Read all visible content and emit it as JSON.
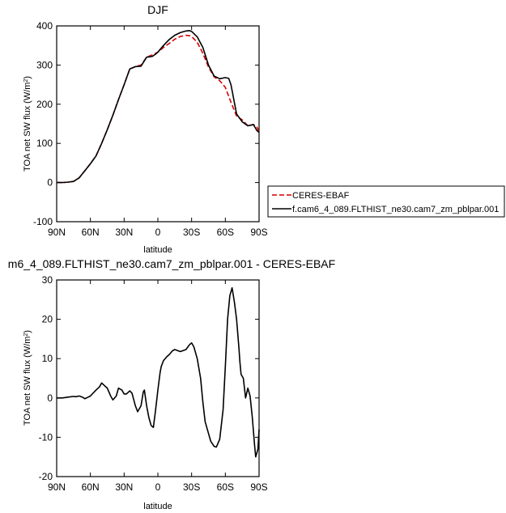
{
  "chart_data": [
    {
      "type": "line",
      "title": "DJF",
      "xlabel": "latitude",
      "ylabel": "TOA net SW flux (W/m",
      "ylabel_sup": "2",
      "ylabel_end": ")",
      "xlim": [
        90,
        -90
      ],
      "ylim": [
        -100,
        400
      ],
      "xticks": [
        90,
        60,
        30,
        0,
        -30,
        -60,
        -90
      ],
      "xtick_labels": [
        "90N",
        "60N",
        "30N",
        "0",
        "30S",
        "60S",
        "90S"
      ],
      "yticks": [
        -100,
        0,
        100,
        200,
        300,
        400
      ],
      "ytick_labels": [
        "-100",
        "0",
        "100",
        "200",
        "300",
        "400"
      ],
      "legend_position": "right-outside",
      "series": [
        {
          "name": "CERES-EBAF",
          "color": "#d40000",
          "dash": "6,3",
          "x": [
            90,
            85,
            80,
            75,
            70,
            65,
            60,
            55,
            50,
            45,
            40,
            35,
            30,
            25,
            20,
            15,
            10,
            5,
            2,
            0,
            -5,
            -10,
            -15,
            -20,
            -25,
            -28,
            -30,
            -35,
            -40,
            -45,
            -50,
            -55,
            -60,
            -65,
            -70,
            -75,
            -80,
            -85,
            -88,
            -90
          ],
          "y": [
            0,
            0,
            1,
            3,
            12,
            30,
            48,
            68,
            100,
            135,
            172,
            212,
            250,
            290,
            296,
            300,
            320,
            326,
            330,
            333,
            345,
            355,
            366,
            373,
            376,
            375,
            373,
            358,
            330,
            295,
            270,
            260,
            243,
            205,
            170,
            160,
            145,
            148,
            142,
            130
          ]
        },
        {
          "name": "f.cam6_4_089.FLTHIST_ne30.cam7_zm_pblpar.001",
          "color": "#000000",
          "dash": "",
          "x": [
            90,
            85,
            80,
            75,
            70,
            65,
            60,
            55,
            50,
            45,
            40,
            35,
            30,
            25,
            20,
            15,
            10,
            5,
            2,
            0,
            -5,
            -10,
            -15,
            -20,
            -25,
            -28,
            -30,
            -35,
            -40,
            -45,
            -50,
            -55,
            -60,
            -63,
            -65,
            -70,
            -75,
            -80,
            -85,
            -88,
            -90
          ],
          "y": [
            0,
            0,
            1,
            3,
            12,
            30,
            48,
            68,
            100,
            135,
            172,
            212,
            250,
            290,
            296,
            297,
            320,
            322,
            328,
            333,
            350,
            365,
            376,
            383,
            387,
            388,
            386,
            372,
            345,
            300,
            272,
            265,
            268,
            266,
            250,
            175,
            155,
            145,
            148,
            133,
            128
          ]
        }
      ]
    },
    {
      "type": "line",
      "title": "m6_4_089.FLTHIST_ne30.cam7_zm_pblpar.001 - CERES-EBAF",
      "xlabel": "latitude",
      "ylabel": "TOA net SW flux (W/m",
      "ylabel_sup": "2",
      "ylabel_end": ")",
      "xlim": [
        90,
        -90
      ],
      "ylim": [
        -20,
        30
      ],
      "xticks": [
        90,
        60,
        30,
        0,
        -30,
        -60,
        -90
      ],
      "xtick_labels": [
        "90N",
        "60N",
        "30N",
        "0",
        "30S",
        "60S",
        "90S"
      ],
      "yticks": [
        -20,
        -10,
        0,
        10,
        20,
        30
      ],
      "ytick_labels": [
        "-20",
        "-10",
        "0",
        "10",
        "20",
        "30"
      ],
      "series": [
        {
          "color": "#000000",
          "dash": "",
          "x": [
            90,
            85,
            80,
            75,
            73,
            70,
            67,
            65,
            62,
            60,
            55,
            52,
            50,
            47,
            45,
            42,
            40,
            37,
            35,
            32,
            30,
            28,
            25,
            23,
            20,
            18,
            15,
            13,
            12,
            10,
            8,
            6,
            4,
            2,
            0,
            -2,
            -3,
            -5,
            -8,
            -10,
            -13,
            -15,
            -18,
            -20,
            -22,
            -25,
            -28,
            -30,
            -32,
            -35,
            -38,
            -40,
            -42,
            -45,
            -47,
            -50,
            -52,
            -55,
            -58,
            -60,
            -62,
            -64,
            -66,
            -68,
            -70,
            -72,
            -73,
            -74,
            -76,
            -78,
            -80,
            -82,
            -84,
            -86,
            -87,
            -89,
            -90
          ],
          "y": [
            0,
            0,
            0.2,
            0.4,
            0.3,
            0.5,
            0.2,
            -0.2,
            0.2,
            0.5,
            2,
            2.8,
            3.8,
            3,
            2.5,
            0.5,
            -0.5,
            0.5,
            2.5,
            2,
            1,
            1,
            1.8,
            1.2,
            -2,
            -3.5,
            -2,
            1.5,
            2,
            -2,
            -5,
            -7,
            -7.5,
            -3,
            2,
            6.5,
            8,
            9.5,
            10.5,
            11,
            12,
            12.3,
            12,
            11.8,
            12,
            12.3,
            13.5,
            14,
            13,
            10,
            5,
            -1,
            -6,
            -9,
            -11,
            -12.3,
            -12.5,
            -10.5,
            -3,
            8,
            20,
            26,
            28,
            24.5,
            20,
            13,
            9,
            6,
            5,
            0,
            2.5,
            0.5,
            -5,
            -12,
            -15,
            -13,
            -8
          ]
        }
      ]
    }
  ]
}
